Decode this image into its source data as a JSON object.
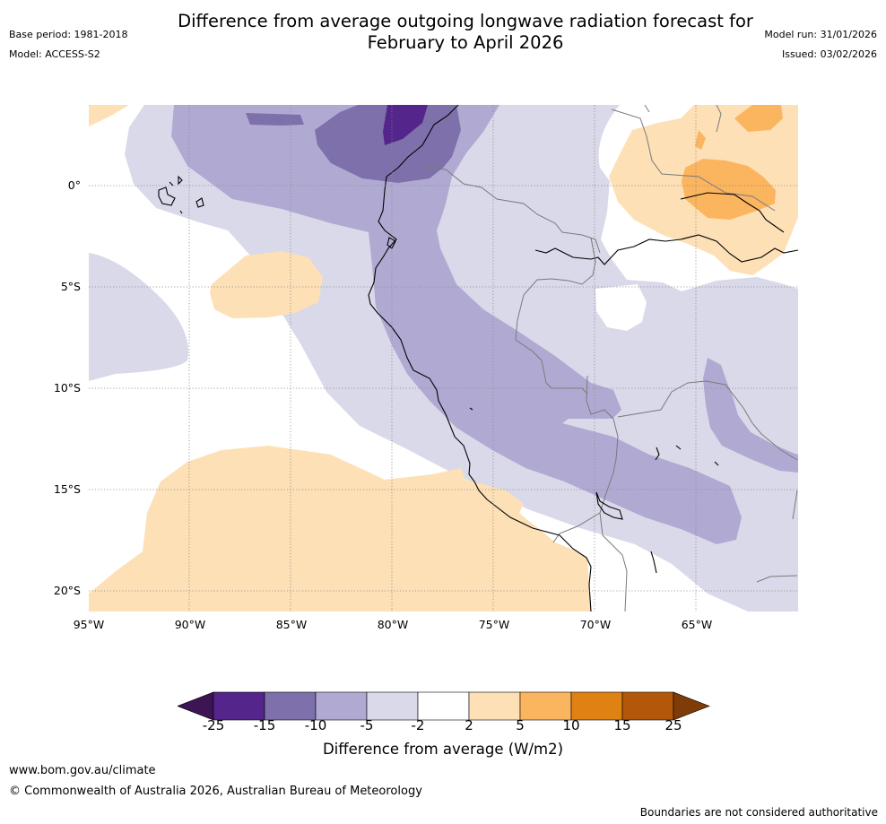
{
  "header": {
    "title_line1": "Difference from average outgoing longwave radiation forecast for",
    "title_line2": "February to April 2026",
    "base_period": "Base period: 1981-2018",
    "model": "Model: ACCESS-S2",
    "model_run": "Model run: 31/01/2026",
    "issued": "Issued: 03/02/2026"
  },
  "axes": {
    "lat_labels": [
      "0°",
      "5°S",
      "10°S",
      "15°S",
      "20°S"
    ],
    "lon_labels": [
      "95°W",
      "90°W",
      "85°W",
      "80°W",
      "75°W",
      "70°W",
      "65°W"
    ]
  },
  "legend": {
    "title": "Difference from average (W/m2)",
    "ticks": [
      "-25",
      "-15",
      "-10",
      "-5",
      "-2",
      "2",
      "5",
      "10",
      "15",
      "25"
    ],
    "colors": [
      "#3d1454",
      "#54258a",
      "#7e70ab",
      "#b0aad3",
      "#d9d9ea",
      "#ffffff",
      "#fde0b6",
      "#fbb55f",
      "#e08114",
      "#b3580b",
      "#7f3b08"
    ]
  },
  "colors": {
    "ocean_bg": "#ffffff",
    "coast": "#000000",
    "borders": "#7a7a7a",
    "grid": "#888888"
  },
  "footer": {
    "website": "www.bom.gov.au/climate",
    "copyright": "© Commonwealth of Australia 2026, Australian Bureau of Meteorology",
    "disclaimer": "Boundaries are not considered authoritative"
  }
}
